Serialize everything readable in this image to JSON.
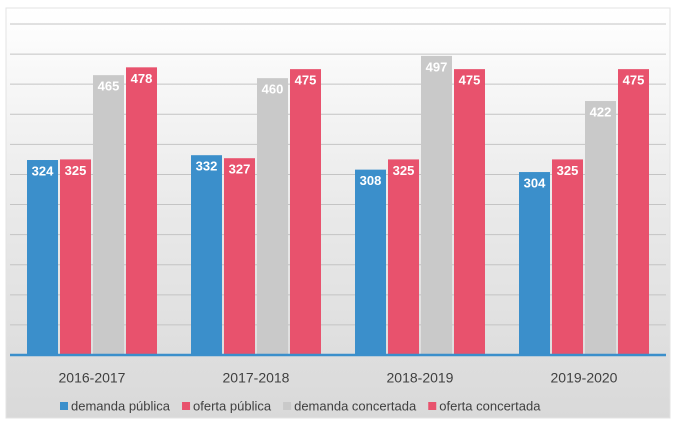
{
  "chart_data": {
    "type": "bar",
    "categories": [
      "2016-2017",
      "2017-2018",
      "2018-2019",
      "2019-2020"
    ],
    "series": [
      {
        "name": "demanda pública",
        "color": "#3b8fcb",
        "values": [
          324,
          332,
          308,
          304
        ]
      },
      {
        "name": "oferta pública",
        "color": "#e8526d",
        "values": [
          325,
          327,
          325,
          325
        ]
      },
      {
        "name": "demanda concertada",
        "color": "#c9c9c9",
        "values": [
          465,
          460,
          497,
          422
        ]
      },
      {
        "name": "oferta concertada",
        "color": "#e8526d",
        "values": [
          478,
          475,
          475,
          475
        ]
      }
    ],
    "ylim": [
      0,
      550
    ],
    "yticks": [
      0,
      50,
      100,
      150,
      200,
      250,
      300,
      350,
      400,
      450,
      500,
      550
    ],
    "grid": true,
    "legend": "bottom"
  }
}
